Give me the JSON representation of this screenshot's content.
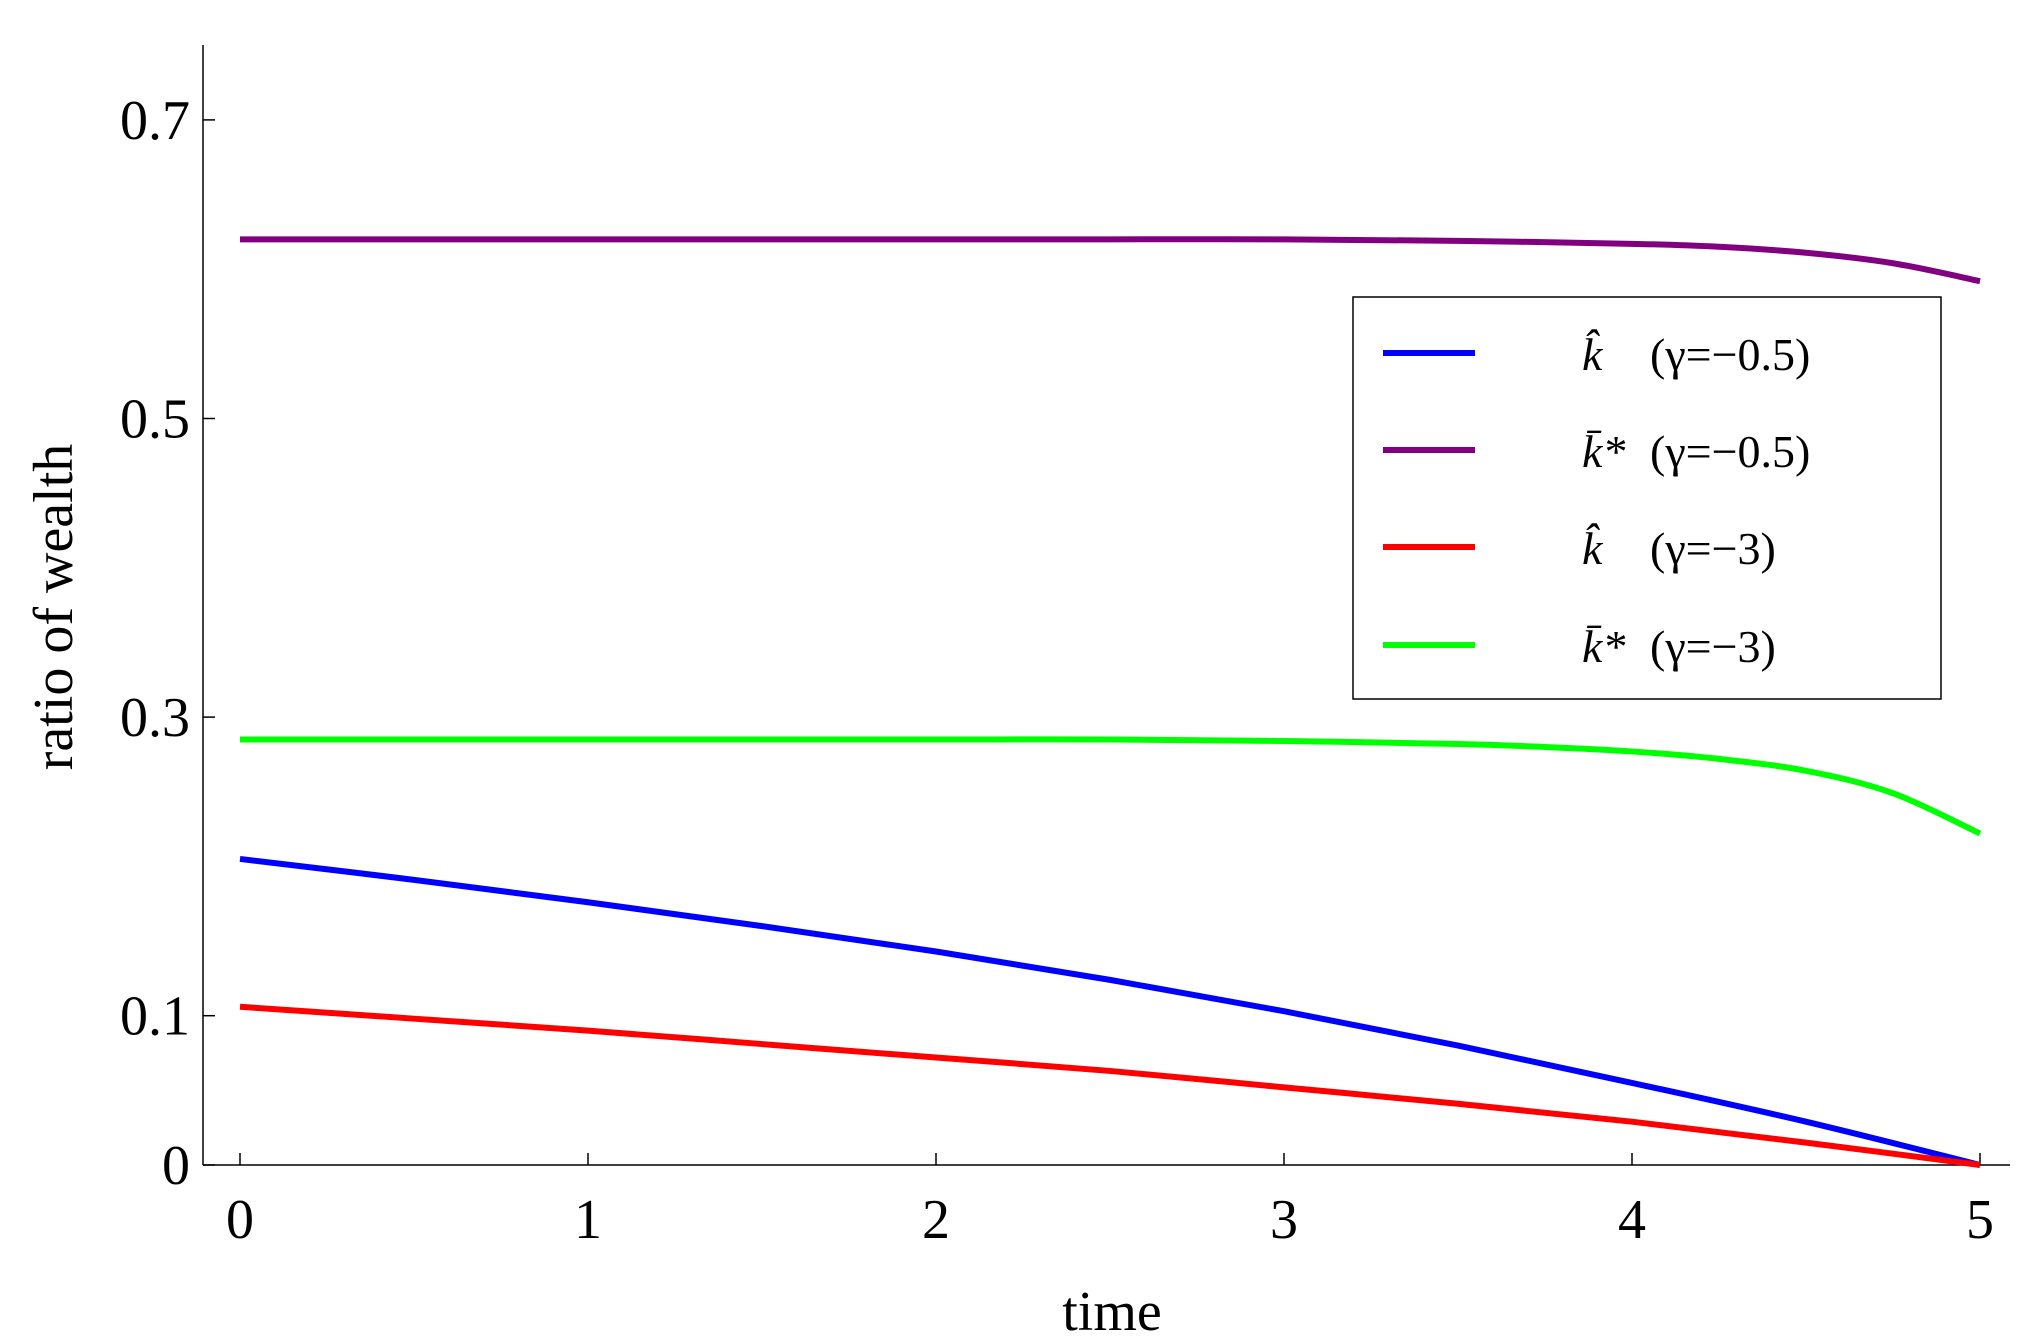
{
  "chart_data": {
    "type": "line",
    "xlabel": "time",
    "ylabel": "ratio of  wealth",
    "xlim": [
      -0.1,
      5.1
    ],
    "ylim": [
      0,
      0.75
    ],
    "xticks": [
      0,
      1,
      2,
      3,
      4,
      5
    ],
    "xtick_labels": [
      "0",
      "1",
      "2",
      "3",
      "4",
      "5"
    ],
    "yticks": [
      0,
      0.1,
      0.3,
      0.5,
      0.7
    ],
    "ytick_labels": [
      "0",
      "0.1",
      "0.3",
      "0.5",
      "0.7"
    ],
    "grid": false,
    "legend_position": "top-right",
    "series": [
      {
        "symbol": "k̂",
        "name": "(γ=−0.5)",
        "color": "#0000ff",
        "x": [
          0,
          0.5,
          1,
          1.5,
          2,
          2.5,
          3,
          3.5,
          4,
          4.5,
          5
        ],
        "y": [
          0.205,
          0.191,
          0.176,
          0.16,
          0.143,
          0.124,
          0.103,
          0.08,
          0.055,
          0.029,
          0.0
        ]
      },
      {
        "symbol": "k̄*",
        "name": "(γ=−0.5)",
        "color": "#800080",
        "x": [
          0,
          0.5,
          1,
          1.5,
          2,
          2.5,
          3,
          3.5,
          4,
          4.25,
          4.5,
          4.75,
          5
        ],
        "y": [
          0.62,
          0.62,
          0.62,
          0.62,
          0.62,
          0.62,
          0.62,
          0.619,
          0.617,
          0.615,
          0.611,
          0.604,
          0.592
        ]
      },
      {
        "symbol": "k̂",
        "name": "(γ=−3)",
        "color": "#ff0000",
        "x": [
          0,
          0.5,
          1,
          1.5,
          2,
          2.5,
          3,
          3.5,
          4,
          4.5,
          5
        ],
        "y": [
          0.106,
          0.098,
          0.09,
          0.081,
          0.072,
          0.063,
          0.052,
          0.041,
          0.029,
          0.015,
          0.0
        ]
      },
      {
        "symbol": "k̄*",
        "name": "(γ=−3)",
        "color": "#00ff00",
        "x": [
          0,
          0.5,
          1,
          1.5,
          2,
          2.5,
          3,
          3.5,
          3.75,
          4,
          4.25,
          4.5,
          4.75,
          5
        ],
        "y": [
          0.285,
          0.285,
          0.285,
          0.285,
          0.285,
          0.285,
          0.284,
          0.282,
          0.28,
          0.277,
          0.272,
          0.264,
          0.249,
          0.222
        ]
      }
    ]
  }
}
